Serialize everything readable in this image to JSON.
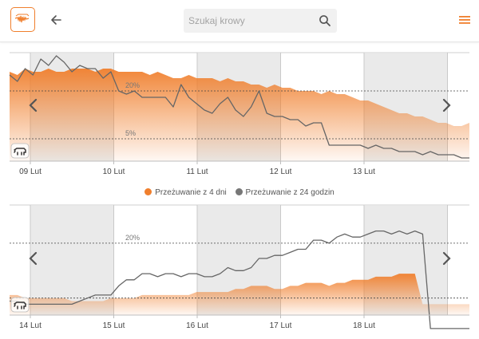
{
  "header": {
    "search": {
      "placeholder": "Szukaj krowy"
    }
  },
  "icons": {
    "logo": "cow-logo-icon",
    "back": "arrow-left-icon",
    "search": "search-icon",
    "menu": "hamburger-menu-icon",
    "prev": "chevron-left-icon",
    "next": "chevron-right-icon",
    "cow": "cow-icon"
  },
  "colors": {
    "accent": "#f07f2d",
    "line": "#666666",
    "shade": "#e6e6e6"
  },
  "legend": [
    {
      "label": "Przeżuwanie z 4 dni",
      "color": "#f07f2d"
    },
    {
      "label": "Przeżuwanie z 24 godzin",
      "color": "#777777"
    }
  ],
  "chart_data": [
    {
      "type": "area",
      "x_ticks": [
        "09 Lut",
        "10 Lut",
        "11 Lut",
        "12 Lut",
        "13 Lut"
      ],
      "reference_lines": [
        "20%",
        "5%"
      ],
      "series": [
        {
          "name": "Przeżuwanie z 4 dni",
          "type": "area",
          "values": [
            26,
            25,
            27,
            26,
            26,
            27,
            26,
            26,
            27,
            27,
            27,
            26,
            27,
            27,
            26,
            26,
            26,
            26,
            25,
            26,
            25,
            24,
            24,
            25,
            24,
            24,
            24,
            23,
            24,
            23,
            23,
            22,
            22,
            21,
            22,
            21,
            21,
            20,
            20,
            20,
            19,
            20,
            19,
            19,
            18,
            17,
            17,
            16,
            15,
            14,
            13,
            13,
            12,
            12,
            11,
            10,
            10,
            9,
            9,
            10
          ]
        },
        {
          "name": "Przeżuwanie z 24 godzin",
          "type": "line",
          "values": [
            25,
            23,
            27,
            25,
            30,
            28,
            31,
            29,
            26,
            28,
            27,
            27,
            24,
            26,
            20,
            19,
            20,
            18,
            18,
            18,
            18,
            15,
            22,
            18,
            16,
            14,
            13,
            16,
            18,
            14,
            12,
            15,
            20,
            13,
            12,
            12,
            11,
            11,
            9,
            10,
            10,
            3,
            3,
            3,
            3,
            3,
            2,
            3,
            2,
            2,
            1,
            1,
            1,
            0,
            1,
            0,
            0,
            0,
            -1,
            -1
          ]
        }
      ]
    },
    {
      "type": "area",
      "x_ticks": [
        "14 Lut",
        "15 Lut",
        "16 Lut",
        "17 Lut",
        "18 Lut"
      ],
      "reference_lines": [
        "20%"
      ],
      "series": [
        {
          "name": "Przeżuwanie z 4 dni",
          "type": "area",
          "values": [
            3,
            3,
            2,
            2,
            2,
            2,
            2,
            2,
            1,
            1,
            1,
            1,
            1,
            2,
            2,
            2,
            2,
            3,
            3,
            3,
            3,
            3,
            3,
            3,
            4,
            4,
            4,
            4,
            4,
            5,
            5,
            6,
            6,
            6,
            5,
            5,
            6,
            6,
            7,
            7,
            7,
            6,
            7,
            7,
            8,
            8,
            8,
            9,
            9,
            9,
            10,
            10,
            10,
            0,
            0,
            0,
            0,
            0,
            0,
            0
          ]
        },
        {
          "name": "Przeżuwanie z 24 godzin",
          "type": "line",
          "values": [
            1,
            1,
            0,
            0,
            0,
            0,
            0,
            0,
            0,
            1,
            2,
            3,
            3,
            3,
            6,
            8,
            8,
            10,
            10,
            9,
            10,
            10,
            9,
            10,
            10,
            9,
            9,
            10,
            12,
            11,
            11,
            12,
            15,
            15,
            16,
            16,
            17,
            18,
            18,
            21,
            21,
            20,
            22,
            23,
            22,
            22,
            23,
            24,
            24,
            23,
            24,
            23,
            24,
            23,
            -8,
            -8,
            -8,
            -8,
            -8,
            -8
          ]
        }
      ]
    }
  ]
}
